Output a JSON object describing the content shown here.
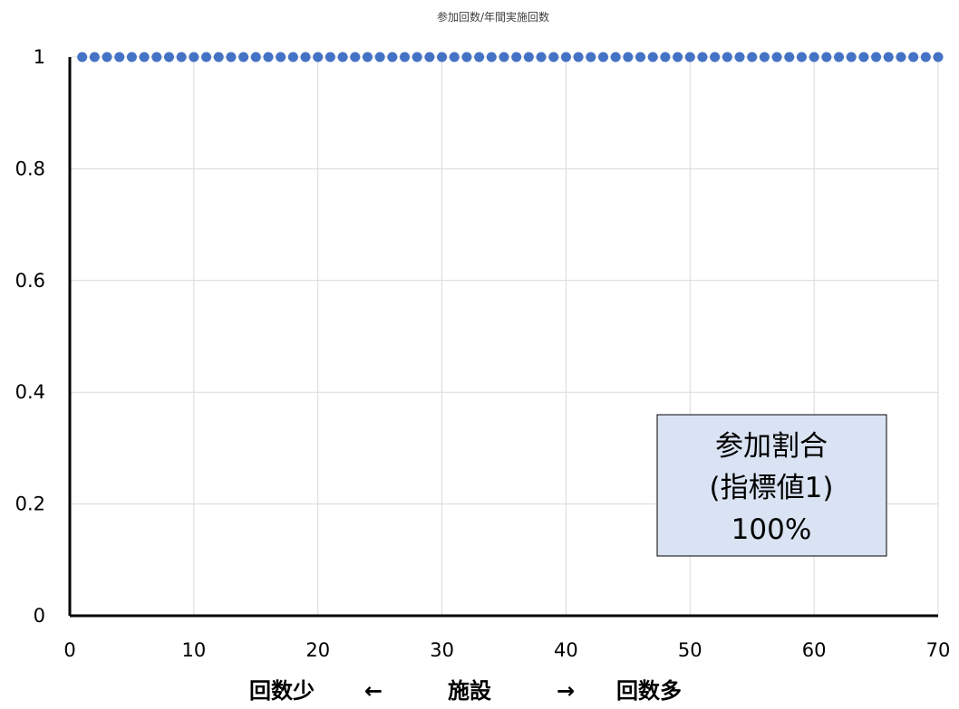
{
  "chart_data": {
    "type": "scatter",
    "title": "参加回数/年間実施回数",
    "xlabel_parts": [
      "回数少",
      "←",
      "施設",
      "→",
      "回数多"
    ],
    "ylabel": "",
    "xlim": [
      0,
      70
    ],
    "ylim": [
      0,
      1
    ],
    "x_ticks": [
      "0",
      "10",
      "20",
      "30",
      "40",
      "50",
      "60",
      "70"
    ],
    "y_ticks": [
      "0",
      "0.2",
      "0.4",
      "0.6",
      "0.8",
      "1"
    ],
    "grid": true,
    "series": [
      {
        "color": "#4472c4",
        "x": [
          1,
          2,
          3,
          4,
          5,
          6,
          7,
          8,
          9,
          10,
          11,
          12,
          13,
          14,
          15,
          16,
          17,
          18,
          19,
          20,
          21,
          22,
          23,
          24,
          25,
          26,
          27,
          28,
          29,
          30,
          31,
          32,
          33,
          34,
          35,
          36,
          37,
          38,
          39,
          40,
          41,
          42,
          43,
          44,
          45,
          46,
          47,
          48,
          49,
          50,
          51,
          52,
          53,
          54,
          55,
          56,
          57,
          58,
          59,
          60,
          61,
          62,
          63,
          64,
          65,
          66,
          67,
          68,
          69,
          70
        ],
        "y": [
          1,
          1,
          1,
          1,
          1,
          1,
          1,
          1,
          1,
          1,
          1,
          1,
          1,
          1,
          1,
          1,
          1,
          1,
          1,
          1,
          1,
          1,
          1,
          1,
          1,
          1,
          1,
          1,
          1,
          1,
          1,
          1,
          1,
          1,
          1,
          1,
          1,
          1,
          1,
          1,
          1,
          1,
          1,
          1,
          1,
          1,
          1,
          1,
          1,
          1,
          1,
          1,
          1,
          1,
          1,
          1,
          1,
          1,
          1,
          1,
          1,
          1,
          1,
          1,
          1,
          1,
          1,
          1,
          1,
          1
        ]
      }
    ],
    "annotation": {
      "lines": [
        "参加割合",
        "(指標値1)",
        "100%"
      ],
      "background": "#dae3f3",
      "border": "#000000"
    }
  }
}
